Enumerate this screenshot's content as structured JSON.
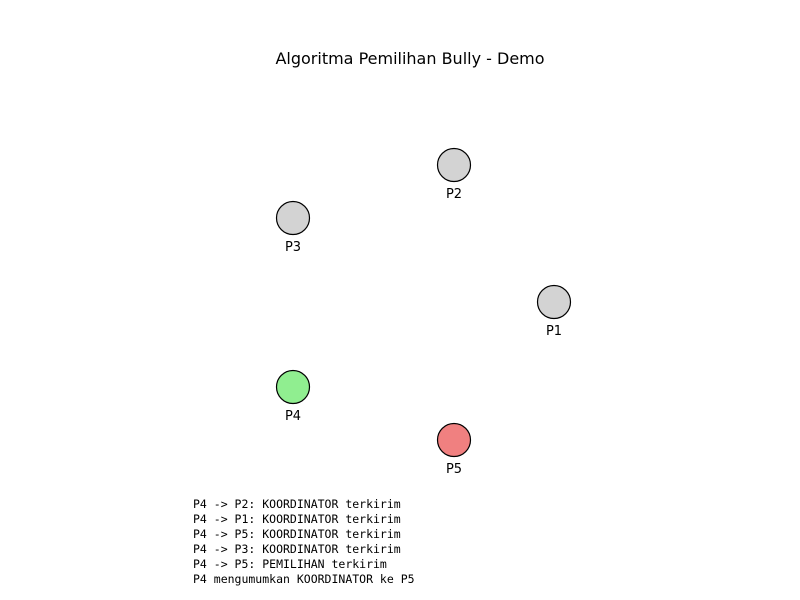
{
  "title": "Algoritma Pemilihan Bully - Demo",
  "nodes": [
    {
      "label": "P1",
      "color": "#d3d3d3"
    },
    {
      "label": "P2",
      "color": "#d3d3d3"
    },
    {
      "label": "P3",
      "color": "#d3d3d3"
    },
    {
      "label": "P4",
      "color": "#90ee90"
    },
    {
      "label": "P5",
      "color": "#f08080"
    }
  ],
  "log": [
    "P4 -> P2: KOORDINATOR terkirim",
    "P4 -> P1: KOORDINATOR terkirim",
    "P4 -> P5: KOORDINATOR terkirim",
    "P4 -> P3: KOORDINATOR terkirim",
    "P4 -> P5: PEMILIHAN terkirim",
    "P4 mengumumkan KOORDINATOR ke P5"
  ]
}
